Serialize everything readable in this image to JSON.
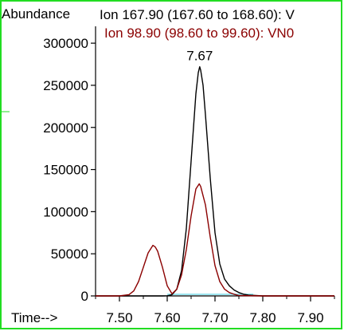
{
  "chart_data": {
    "type": "line",
    "ylabel": "Abundance",
    "xlabel": "Time-->",
    "xlim": [
      7.45,
      7.95
    ],
    "ylim": [
      0,
      320000
    ],
    "x_ticks": [
      7.5,
      7.6,
      7.7,
      7.8,
      7.9
    ],
    "x_tick_labels": [
      "7.50",
      "7.60",
      "7.70",
      "7.80",
      "7.90"
    ],
    "y_ticks": [
      0,
      50000,
      100000,
      150000,
      200000,
      250000,
      300000
    ],
    "y_tick_labels": [
      "0",
      "50000",
      "100000",
      "150000",
      "200000",
      "250000",
      "300000"
    ],
    "grid": false,
    "legend_position": "top",
    "peak_annotation": {
      "label": "7.67",
      "x": 7.668,
      "y": 272000
    },
    "series": [
      {
        "name": "Ion 167.90 (167.60 to 168.60): V",
        "color": "#000000",
        "x": [
          7.45,
          7.59,
          7.6,
          7.61,
          7.62,
          7.63,
          7.64,
          7.65,
          7.66,
          7.665,
          7.668,
          7.67,
          7.675,
          7.68,
          7.69,
          7.7,
          7.71,
          7.72,
          7.73,
          7.74,
          7.75,
          7.76,
          7.77,
          7.8,
          7.85,
          7.9,
          7.95
        ],
        "values": [
          0,
          0,
          200,
          1500,
          8000,
          30000,
          80000,
          160000,
          240000,
          265000,
          272000,
          268000,
          250000,
          215000,
          140000,
          75000,
          38000,
          20000,
          12000,
          7000,
          4000,
          2000,
          1000,
          0,
          0,
          0,
          0
        ]
      },
      {
        "name": "Ion  98.90 (98.60 to 99.60): VN0",
        "color": "#8b0000",
        "x": [
          7.45,
          7.5,
          7.52,
          7.53,
          7.54,
          7.55,
          7.56,
          7.57,
          7.575,
          7.58,
          7.59,
          7.6,
          7.61,
          7.62,
          7.63,
          7.64,
          7.65,
          7.66,
          7.667,
          7.67,
          7.68,
          7.69,
          7.7,
          7.71,
          7.72,
          7.73,
          7.74,
          7.75,
          7.8,
          7.85,
          7.9,
          7.95
        ],
        "values": [
          0,
          0,
          1500,
          6000,
          17000,
          34000,
          51000,
          60000,
          58000,
          53000,
          34000,
          12000,
          2500,
          8000,
          25000,
          55000,
          95000,
          127000,
          133000,
          130000,
          108000,
          70000,
          36000,
          17000,
          8000,
          4000,
          2000,
          500,
          0,
          0,
          0,
          0
        ]
      }
    ]
  }
}
